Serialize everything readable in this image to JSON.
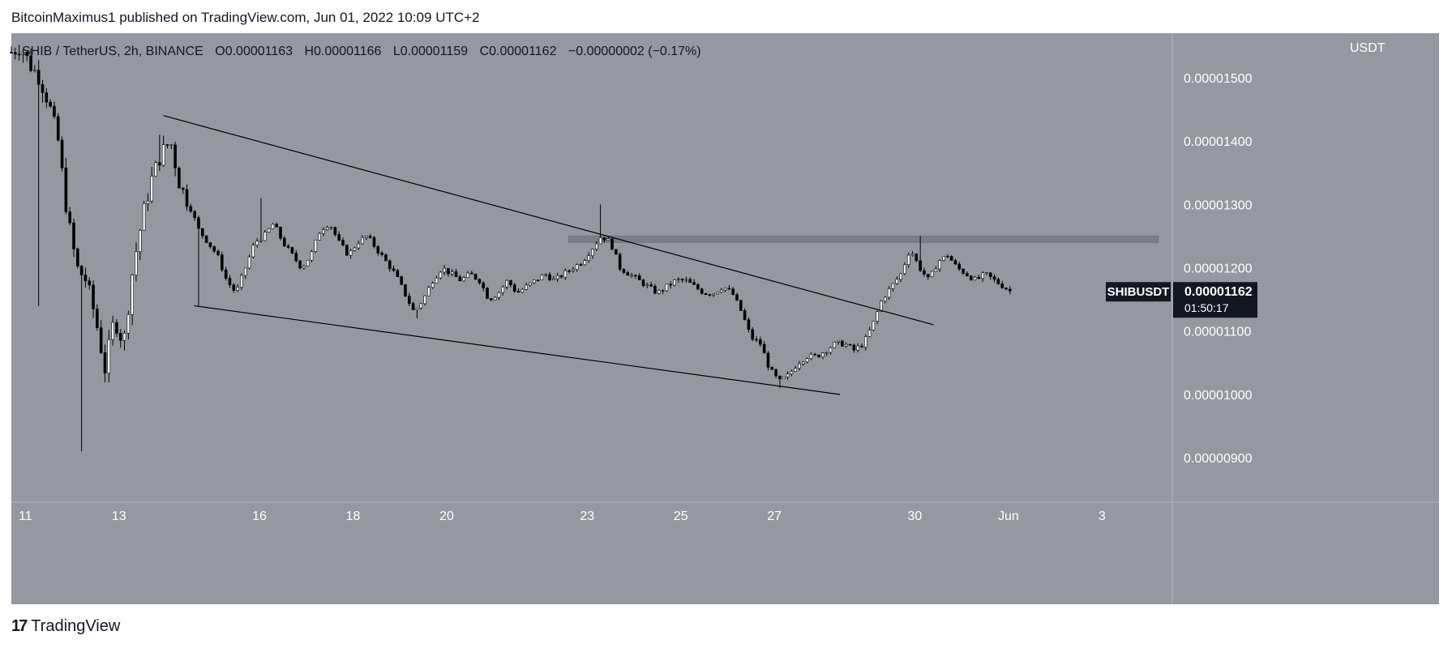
{
  "header": {
    "published": "BitcoinMaximus1 published on TradingView.com, Jun 01, 2022 10:09 UTC+2"
  },
  "legend": {
    "symbol": "SHIB / TetherUS, 2h, BINANCE",
    "o_label": "O",
    "o": "0.00001163",
    "h_label": "H",
    "h": "0.00001166",
    "l_label": "L",
    "l": "0.00001159",
    "c_label": "C",
    "c": "0.00001162",
    "change": "−0.00000002 (−0.17%)"
  },
  "price_axis": {
    "currency": "USDT",
    "tick_labels": [
      "0.00001500",
      "0.00001400",
      "0.00001300",
      "0.00001200",
      "0.00001100",
      "0.00001000",
      "0.00000900"
    ],
    "last_price_tag": "0.00001162",
    "countdown": "01:50:17",
    "symbol_tag": "SHIBUSDT"
  },
  "time_axis": {
    "tick_labels": [
      "11",
      "13",
      "16",
      "18",
      "20",
      "23",
      "25",
      "27",
      "30",
      "Jun",
      "3"
    ]
  },
  "footer": {
    "brand": "TradingView"
  },
  "colors": {
    "pane_bg": "#9598a1",
    "candle_up": "#ffffff",
    "candle_down": "#000000",
    "wick": "#000000",
    "trendline": "#000000",
    "zone": "#787b86",
    "axis_bg": "#9598a1",
    "tag_bg": "#131722"
  },
  "chart_data": {
    "type": "candlestick",
    "title": "SHIB / TetherUS, 2h, BINANCE",
    "x_unit": "2022 date (day of month, fractional)",
    "ylim": [
      8.3e-06,
      1.57e-05
    ],
    "xlim": [
      10.7,
      35.5
    ],
    "x_tick_values": [
      11,
      13,
      16,
      18,
      20,
      23,
      25,
      27,
      30,
      32,
      34
    ],
    "y_tick_values": [
      1.5e-05,
      1.4e-05,
      1.3e-05,
      1.2e-05,
      1.1e-05,
      1e-05,
      9e-06
    ],
    "grid": false,
    "close_path": [
      [
        10.7,
        1.54e-05
      ],
      [
        10.9,
        1.55e-05
      ],
      [
        11.1,
        1.52e-05
      ],
      [
        11.3,
        1.5e-05
      ],
      [
        11.5,
        1.46e-05
      ],
      [
        11.7,
        1.4e-05
      ],
      [
        11.9,
        1.28e-05
      ],
      [
        12.1,
        1.2e-05
      ],
      [
        12.3,
        1.18e-05
      ],
      [
        12.5,
        1.12e-05
      ],
      [
        12.7,
        1.04e-05
      ],
      [
        12.9,
        1.12e-05
      ],
      [
        13.1,
        1.08e-05
      ],
      [
        13.3,
        1.2e-05
      ],
      [
        13.5,
        1.28e-05
      ],
      [
        13.7,
        1.34e-05
      ],
      [
        13.9,
        1.38e-05
      ],
      [
        14.1,
        1.4e-05
      ],
      [
        14.3,
        1.33e-05
      ],
      [
        14.5,
        1.3e-05
      ],
      [
        14.7,
        1.26e-05
      ],
      [
        14.9,
        1.24e-05
      ],
      [
        15.1,
        1.22e-05
      ],
      [
        15.3,
        1.18e-05
      ],
      [
        15.5,
        1.16e-05
      ],
      [
        15.7,
        1.2e-05
      ],
      [
        15.9,
        1.24e-05
      ],
      [
        16.1,
        1.25e-05
      ],
      [
        16.3,
        1.27e-05
      ],
      [
        16.5,
        1.24e-05
      ],
      [
        16.7,
        1.22e-05
      ],
      [
        16.9,
        1.2e-05
      ],
      [
        17.1,
        1.22e-05
      ],
      [
        17.3,
        1.26e-05
      ],
      [
        17.5,
        1.27e-05
      ],
      [
        17.7,
        1.24e-05
      ],
      [
        17.9,
        1.22e-05
      ],
      [
        18.1,
        1.24e-05
      ],
      [
        18.3,
        1.25e-05
      ],
      [
        18.5,
        1.23e-05
      ],
      [
        18.7,
        1.21e-05
      ],
      [
        18.9,
        1.19e-05
      ],
      [
        19.1,
        1.16e-05
      ],
      [
        19.3,
        1.13e-05
      ],
      [
        19.5,
        1.15e-05
      ],
      [
        19.7,
        1.18e-05
      ],
      [
        19.9,
        1.2e-05
      ],
      [
        20.1,
        1.19e-05
      ],
      [
        20.3,
        1.18e-05
      ],
      [
        20.5,
        1.19e-05
      ],
      [
        20.7,
        1.18e-05
      ],
      [
        20.9,
        1.15e-05
      ],
      [
        21.1,
        1.16e-05
      ],
      [
        21.3,
        1.18e-05
      ],
      [
        21.5,
        1.16e-05
      ],
      [
        21.7,
        1.17e-05
      ],
      [
        21.9,
        1.18e-05
      ],
      [
        22.1,
        1.19e-05
      ],
      [
        22.3,
        1.18e-05
      ],
      [
        22.5,
        1.19e-05
      ],
      [
        22.7,
        1.2e-05
      ],
      [
        22.9,
        1.21e-05
      ],
      [
        23.1,
        1.23e-05
      ],
      [
        23.3,
        1.25e-05
      ],
      [
        23.5,
        1.24e-05
      ],
      [
        23.7,
        1.2e-05
      ],
      [
        23.9,
        1.19e-05
      ],
      [
        24.1,
        1.18e-05
      ],
      [
        24.3,
        1.17e-05
      ],
      [
        24.5,
        1.16e-05
      ],
      [
        24.7,
        1.17e-05
      ],
      [
        24.9,
        1.18e-05
      ],
      [
        25.1,
        1.18e-05
      ],
      [
        25.3,
        1.17e-05
      ],
      [
        25.5,
        1.16e-05
      ],
      [
        25.7,
        1.16e-05
      ],
      [
        25.9,
        1.17e-05
      ],
      [
        26.1,
        1.16e-05
      ],
      [
        26.3,
        1.13e-05
      ],
      [
        26.5,
        1.09e-05
      ],
      [
        26.7,
        1.08e-05
      ],
      [
        26.9,
        1.04e-05
      ],
      [
        27.1,
        1.02e-05
      ],
      [
        27.3,
        1.03e-05
      ],
      [
        27.5,
        1.05e-05
      ],
      [
        27.7,
        1.06e-05
      ],
      [
        27.9,
        1.06e-05
      ],
      [
        28.1,
        1.07e-05
      ],
      [
        28.3,
        1.08e-05
      ],
      [
        28.5,
        1.08e-05
      ],
      [
        28.7,
        1.07e-05
      ],
      [
        28.9,
        1.08e-05
      ],
      [
        29.1,
        1.11e-05
      ],
      [
        29.3,
        1.15e-05
      ],
      [
        29.5,
        1.17e-05
      ],
      [
        29.7,
        1.19e-05
      ],
      [
        29.9,
        1.23e-05
      ],
      [
        30.1,
        1.2e-05
      ],
      [
        30.3,
        1.18e-05
      ],
      [
        30.5,
        1.21e-05
      ],
      [
        30.7,
        1.22e-05
      ],
      [
        30.9,
        1.2e-05
      ],
      [
        31.1,
        1.19e-05
      ],
      [
        31.3,
        1.18e-05
      ],
      [
        31.5,
        1.19e-05
      ],
      [
        31.7,
        1.18e-05
      ],
      [
        31.9,
        1.17e-05
      ],
      [
        32.1,
        1.16e-05
      ]
    ],
    "lows": [
      [
        11.25,
        1.14e-05
      ],
      [
        12.2,
        9.1e-06
      ],
      [
        14.7,
        1.14e-05
      ],
      [
        19.4,
        1.12e-05
      ],
      [
        27.1,
        1.01e-05
      ]
    ],
    "highs": [
      [
        13.9,
        1.41e-05
      ],
      [
        16.0,
        1.31e-05
      ],
      [
        23.3,
        1.3e-05
      ],
      [
        30.15,
        1.25e-05
      ]
    ],
    "trendlines": [
      {
        "from": [
          13.95,
          1.44e-05
        ],
        "to": [
          30.4,
          1.11e-05
        ]
      },
      {
        "from": [
          14.6,
          1.14e-05
        ],
        "to": [
          28.4,
          1e-05
        ]
      }
    ],
    "zones": [
      {
        "x0": 22.6,
        "x1": 35.2,
        "y0": 1.24e-05,
        "y1": 1.25e-05
      }
    ],
    "last_price": 1.162e-05
  }
}
